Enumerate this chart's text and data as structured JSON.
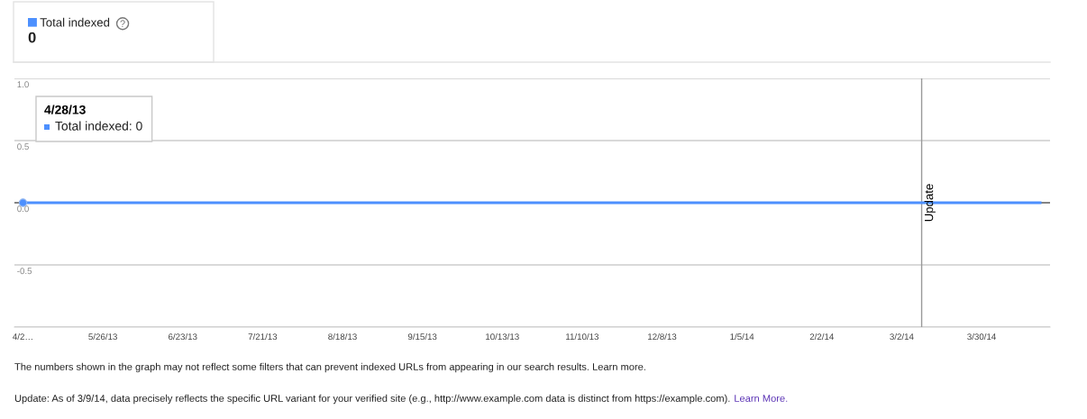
{
  "chart_data": {
    "type": "line",
    "x": [
      "2013-04-28",
      "2014-04-20"
    ],
    "series": [
      {
        "name": "Total indexed",
        "color": "#4d90fe",
        "values": [
          0,
          0
        ]
      },
      {
        "type": "scatter",
        "color": "#4d90fe",
        "x": [
          "2013-04-28"
        ],
        "values": [
          0
        ]
      }
    ],
    "xlim": [
      "2013-04-25",
      "2014-04-23"
    ],
    "xticks": [
      {
        "value": "2013-04-28",
        "label": "4/2…"
      },
      {
        "value": "2013-05-26",
        "label": "5/26/13"
      },
      {
        "value": "2013-06-23",
        "label": "6/23/13"
      },
      {
        "value": "2013-07-21",
        "label": "7/21/13"
      },
      {
        "value": "2013-08-18",
        "label": "8/18/13"
      },
      {
        "value": "2013-09-15",
        "label": "9/15/13"
      },
      {
        "value": "2013-10-13",
        "label": "10/13/13"
      },
      {
        "value": "2013-11-10",
        "label": "11/10/13"
      },
      {
        "value": "2013-12-08",
        "label": "12/8/13"
      },
      {
        "value": "2014-01-05",
        "label": "1/5/14"
      },
      {
        "value": "2014-02-02",
        "label": "2/2/14"
      },
      {
        "value": "2014-03-02",
        "label": "3/2/14"
      },
      {
        "value": "2014-03-30",
        "label": "3/30/14"
      }
    ],
    "ylim": [
      -1,
      1
    ],
    "yticks": [
      {
        "value": 1,
        "label": "1.0"
      },
      {
        "value": 0.5,
        "label": "0.5"
      },
      {
        "value": 0,
        "label": "0.0"
      },
      {
        "value": -0.5,
        "label": "-0.5"
      },
      {
        "value": -1,
        "label": null
      }
    ],
    "grid": "y",
    "legend": "top left",
    "ref_lines": [
      {
        "axis": "x",
        "value": "2014-03-09",
        "label": "Update",
        "color": "#999999"
      },
      {
        "axis": "y",
        "value": 0,
        "color": "#666666"
      }
    ],
    "annotations": [
      "4/28/13\nTotal indexed: 0",
      "0",
      "The numbers shown in the graph may not reflect some filters that can prevent indexed URLs from appearing in our search results. Learn more.",
      "Update: As of 3/9/14, data precisely reflects the specific URL variant for your verified site (e.g., http://www.example.com data is distinct from https://example.com).",
      "Learn More."
    ]
  }
}
